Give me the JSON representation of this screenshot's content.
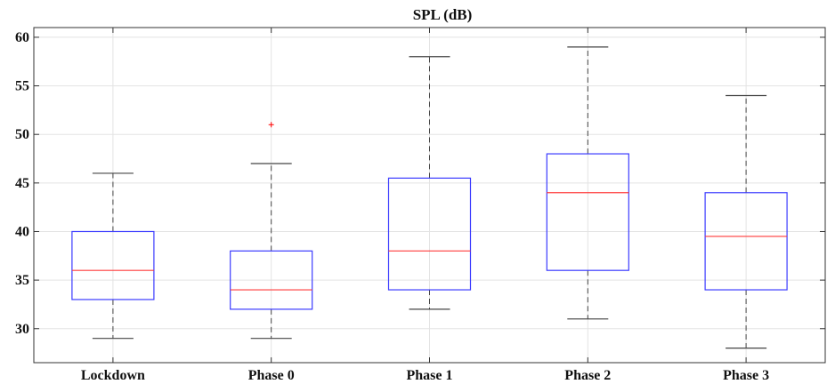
{
  "chart_data": {
    "type": "box",
    "title": "SPL (dB)",
    "xlabel": "",
    "ylabel": "",
    "ylim": [
      26.5,
      61
    ],
    "yticks": [
      30,
      35,
      40,
      45,
      50,
      55,
      60
    ],
    "grid": true,
    "categories": [
      "Lockdown",
      "Phase 0",
      "Phase 1",
      "Phase 2",
      "Phase 3"
    ],
    "boxes": [
      {
        "whisker_low": 29,
        "q1": 33,
        "median": 36,
        "q3": 40,
        "whisker_high": 46,
        "outliers": []
      },
      {
        "whisker_low": 29,
        "q1": 32,
        "median": 34,
        "q3": 38,
        "whisker_high": 47,
        "outliers": [
          51
        ]
      },
      {
        "whisker_low": 32,
        "q1": 34,
        "median": 38,
        "q3": 45.5,
        "whisker_high": 58,
        "outliers": []
      },
      {
        "whisker_low": 31,
        "q1": 36,
        "median": 44,
        "q3": 48,
        "whisker_high": 59,
        "outliers": []
      },
      {
        "whisker_low": 28,
        "q1": 34,
        "median": 39.5,
        "q3": 44,
        "whisker_high": 54,
        "outliers": []
      }
    ],
    "colors": {
      "box": "#3b3bff",
      "median": "#ff3b3b",
      "whisker": "#444444",
      "outlier": "#ff0000"
    }
  }
}
